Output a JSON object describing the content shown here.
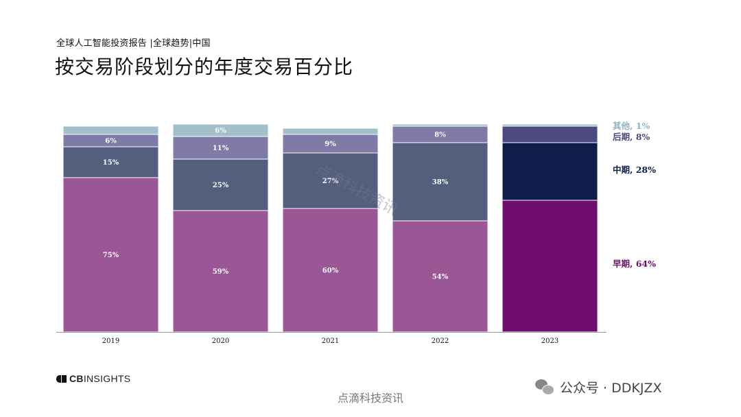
{
  "header": {
    "subtitle": "全球人工智能投资报告 |全球趋势|中国",
    "title": "按交易阶段划分的年度交易百分比"
  },
  "chart_data": {
    "type": "bar",
    "stacked": true,
    "title": "按交易阶段划分的年度交易百分比",
    "xlabel": "",
    "ylabel": "",
    "ylim": [
      0,
      100
    ],
    "grid": false,
    "categories": [
      "2019",
      "2020",
      "2021",
      "2022",
      "2023"
    ],
    "series": [
      {
        "name": "早期",
        "values": [
          75,
          59,
          60,
          54,
          64
        ],
        "labels": [
          "75%",
          "59%",
          "60%",
          "54%",
          ""
        ],
        "color": "#9b5696",
        "color_highlight": "#700e6f"
      },
      {
        "name": "中期",
        "values": [
          15,
          25,
          27,
          38,
          28
        ],
        "labels": [
          "15%",
          "25%",
          "27%",
          "38%",
          ""
        ],
        "color": "#545f7d",
        "color_highlight": "#0f1d4a"
      },
      {
        "name": "后期",
        "values": [
          6,
          11,
          9,
          8,
          8
        ],
        "labels": [
          "6%",
          "11%",
          "9%",
          "8%",
          ""
        ],
        "color": "#7f7ba6",
        "color_highlight": "#4c4a82"
      },
      {
        "name": "其他",
        "values": [
          4,
          6,
          3,
          1,
          1
        ],
        "labels": [
          "",
          "6%",
          "",
          "",
          ""
        ],
        "color": "#a3c0ca",
        "color_highlight": "#a3c0ca"
      }
    ],
    "highlight_category": "2023",
    "legend": [
      {
        "text": "其他, 1%",
        "color": "#8fb3c2"
      },
      {
        "text": "后期, 8%",
        "color": "#4c4a82"
      },
      {
        "text": "中期, 28%",
        "color": "#0f1d4a"
      },
      {
        "text": "早期, 64%",
        "color": "#700e6f"
      }
    ],
    "legend_placement": "right"
  },
  "footer": {
    "logo_prefix": "CB",
    "logo_suffix": "INSIGHTS",
    "watermark_bottom": "点滴科技资讯",
    "watermark_diagonal": "点滴科技资讯",
    "wechat_text": "公众号 · DDKJZX"
  }
}
